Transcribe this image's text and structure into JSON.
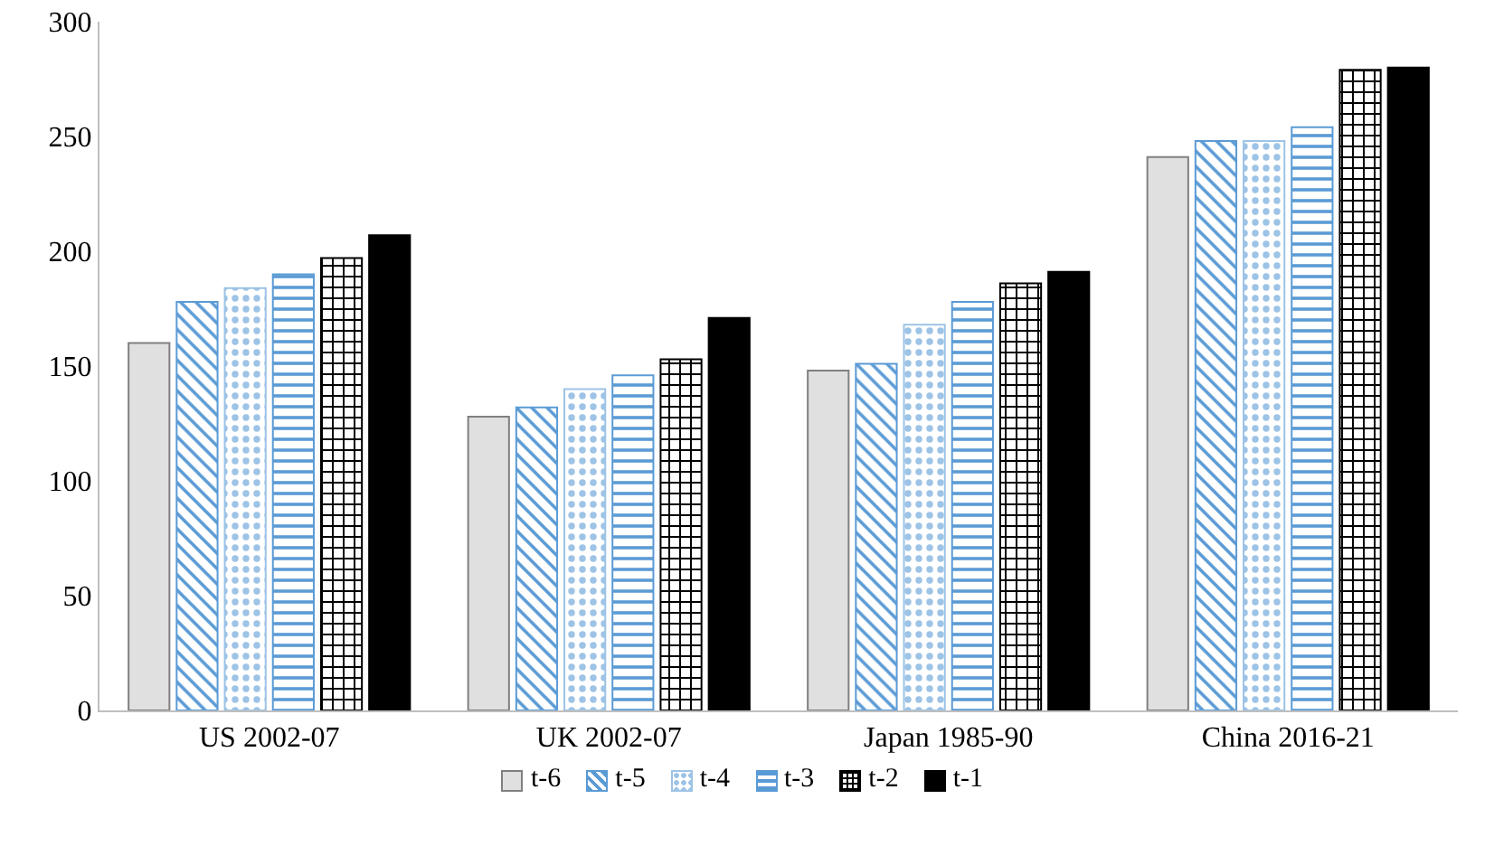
{
  "chart_data": {
    "type": "bar",
    "categories": [
      "US 2002-07",
      "UK 2002-07",
      "Japan 1985-90",
      "China 2016-21"
    ],
    "series": [
      {
        "name": "t-6",
        "color": "#e0e0e0",
        "values": [
          160,
          128,
          148,
          241
        ]
      },
      {
        "name": "t-5",
        "color": "#5b9bd5",
        "values": [
          178,
          132,
          151,
          248
        ]
      },
      {
        "name": "t-4",
        "color": "#9dc3e6",
        "values": [
          184,
          140,
          168,
          248
        ]
      },
      {
        "name": "t-3",
        "color": "#5b9bd5",
        "values": [
          190,
          146,
          178,
          254
        ]
      },
      {
        "name": "t-2",
        "color": "#000000",
        "values": [
          197,
          153,
          186,
          279
        ]
      },
      {
        "name": "t-1",
        "color": "#000000",
        "values": [
          207,
          171,
          191,
          280
        ]
      }
    ],
    "ylim": [
      0,
      300
    ],
    "yticks": [
      0,
      50,
      100,
      150,
      200,
      250,
      300
    ],
    "grid": false,
    "legend": "bottom"
  }
}
